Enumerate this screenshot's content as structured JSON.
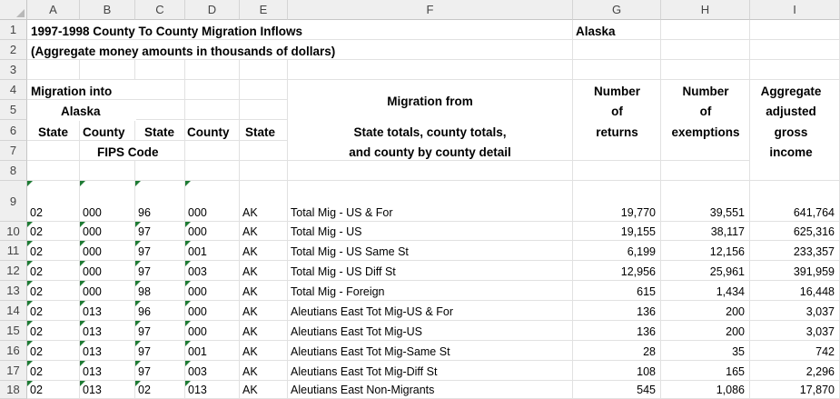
{
  "column_headers": [
    "A",
    "B",
    "C",
    "D",
    "E",
    "F",
    "G",
    "H",
    "I"
  ],
  "row_headers": [
    "1",
    "2",
    "3",
    "4",
    "5",
    "6",
    "7",
    "8",
    "9",
    "10",
    "11",
    "12",
    "13",
    "14",
    "15",
    "16",
    "17",
    "18"
  ],
  "title": {
    "line1": "1997-1998 County To County Migration  Inflows",
    "state_name": "Alaska",
    "line2": "(Aggregate money amounts in thousands of dollars)"
  },
  "headers": {
    "migration_into_l1": "Migration into",
    "migration_into_l2": "Alaska",
    "state": "State",
    "county": "County",
    "fips": "FIPS Code",
    "state_code": "State",
    "county_code": "County",
    "state_abbr": "State",
    "migration_from": "Migration from",
    "from_l1": "State totals, county totals,",
    "from_l2": "and county by county detail",
    "returns_l1": "Number",
    "returns_l2": "of",
    "returns_l3": "returns",
    "exemptions_l1": "Number",
    "exemptions_l2": "of",
    "exemptions_l3": "exemptions",
    "agi_l1": "Aggregate",
    "agi_l2": "adjusted",
    "agi_l3": "gross",
    "agi_l4": "income"
  },
  "rows": [
    {
      "a": "02",
      "b": "000",
      "c": "96",
      "d": "000",
      "e": "AK",
      "f": "Total Mig - US & For",
      "g": "19,770",
      "h": "39,551",
      "i": "641,764"
    },
    {
      "a": "02",
      "b": "000",
      "c": "97",
      "d": "000",
      "e": "AK",
      "f": "Total Mig - US",
      "g": "19,155",
      "h": "38,117",
      "i": "625,316"
    },
    {
      "a": "02",
      "b": "000",
      "c": "97",
      "d": "001",
      "e": "AK",
      "f": "Total Mig - US Same St",
      "g": "6,199",
      "h": "12,156",
      "i": "233,357"
    },
    {
      "a": "02",
      "b": "000",
      "c": "97",
      "d": "003",
      "e": "AK",
      "f": "Total Mig - US Diff St",
      "g": "12,956",
      "h": "25,961",
      "i": "391,959"
    },
    {
      "a": "02",
      "b": "000",
      "c": "98",
      "d": "000",
      "e": "AK",
      "f": "Total Mig - Foreign",
      "g": "615",
      "h": "1,434",
      "i": "16,448"
    },
    {
      "a": "02",
      "b": "013",
      "c": "96",
      "d": "000",
      "e": "AK",
      "f": "Aleutians East Tot Mig-US & For",
      "g": "136",
      "h": "200",
      "i": "3,037"
    },
    {
      "a": "02",
      "b": "013",
      "c": "97",
      "d": "000",
      "e": "AK",
      "f": "Aleutians East Tot Mig-US",
      "g": "136",
      "h": "200",
      "i": "3,037"
    },
    {
      "a": "02",
      "b": "013",
      "c": "97",
      "d": "001",
      "e": "AK",
      "f": "Aleutians East Tot Mig-Same St",
      "g": "28",
      "h": "35",
      "i": "742"
    },
    {
      "a": "02",
      "b": "013",
      "c": "97",
      "d": "003",
      "e": "AK",
      "f": "Aleutians East Tot Mig-Diff St",
      "g": "108",
      "h": "165",
      "i": "2,296"
    },
    {
      "a": "02",
      "b": "013",
      "c": "02",
      "d": "013",
      "e": "AK",
      "f": "Aleutians East Non-Migrants",
      "g": "545",
      "h": "1,086",
      "i": "17,870"
    }
  ]
}
